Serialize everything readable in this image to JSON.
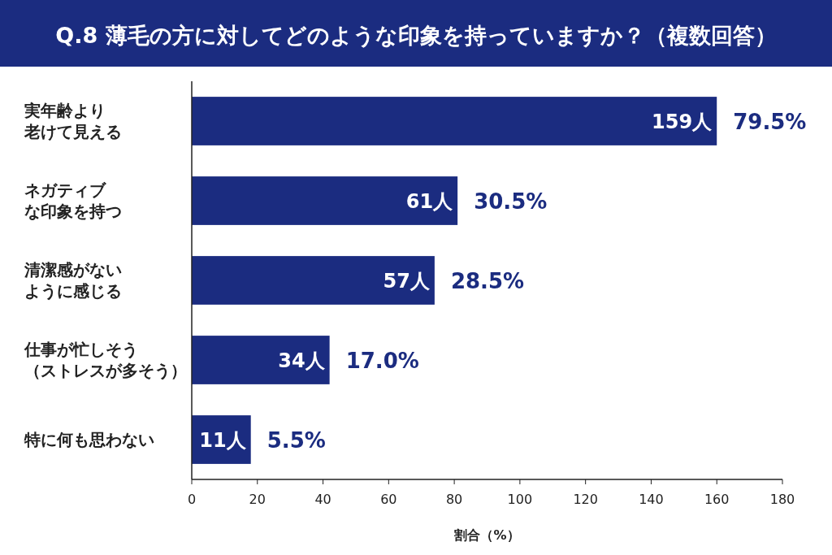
{
  "chart_data": {
    "type": "bar",
    "orientation": "horizontal",
    "title": "Q.8 薄毛の方に対してどのような印象を持っていますか？（複数回答）",
    "xlabel": "割合（%）",
    "categories": [
      "実年齢より老けて見える",
      "ネガティブな印象を持つ",
      "清潔感がないように感じる",
      "仕事が忙しそう（ストレスが多そう）",
      "特に何も思わない"
    ],
    "values": [
      160,
      81,
      74,
      42,
      18
    ],
    "color": "#1b2c80",
    "xlim": [
      0,
      180
    ],
    "xticks": [
      0,
      20,
      40,
      60,
      80,
      100,
      120,
      140,
      160,
      180
    ],
    "annotations": [
      {
        "text": "159人",
        "x": 160,
        "y": "実年齢より老けて見える"
      },
      {
        "text": "61人",
        "x": 81,
        "y": "ネガティブな印象を持つ"
      },
      {
        "text": "57人",
        "x": 74,
        "y": "清潔感がないように感じる"
      },
      {
        "text": "34人",
        "x": 42,
        "y": "仕事が忙しそう（ストレスが多そう）"
      },
      {
        "text": "11人",
        "x": 18,
        "y": "特に何も思わない"
      },
      {
        "text": "79.5%",
        "x": 160,
        "y": "実年齢より老けて見える"
      },
      {
        "text": "30.5%",
        "x": 81,
        "y": "ネガティブな印象を持つ"
      },
      {
        "text": "28.5%",
        "x": 74,
        "y": "清潔感がないように感じる"
      },
      {
        "text": "17.0%",
        "x": 42,
        "y": "仕事が忙しそう（ストレスが多そう）"
      },
      {
        "text": "5.5%",
        "x": 18,
        "y": "特に何も思わない"
      }
    ]
  }
}
